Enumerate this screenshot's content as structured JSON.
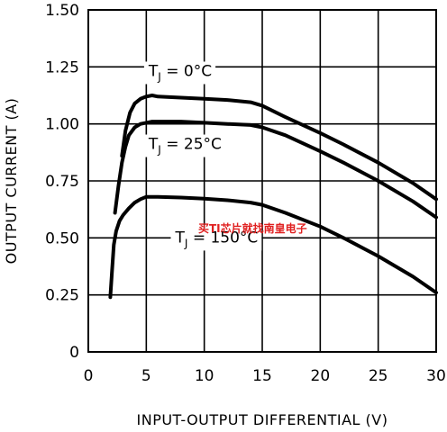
{
  "chart_data": {
    "type": "line",
    "xlabel": "INPUT-OUTPUT DIFFERENTIAL (V)",
    "ylabel": "OUTPUT CURRENT (A)",
    "xlim": [
      0,
      30
    ],
    "ylim": [
      0,
      1.5
    ],
    "x_ticks": [
      "0",
      "5",
      "10",
      "15",
      "20",
      "25",
      "30"
    ],
    "y_ticks": [
      "0",
      "0.25",
      "0.50",
      "0.75",
      "1.00",
      "1.25",
      "1.50"
    ],
    "grid": true,
    "series": [
      {
        "name": "T_J = 0°C",
        "x": [
          2.9,
          3.2,
          3.6,
          4.0,
          4.5,
          5.0,
          5.5,
          6,
          8,
          10,
          12,
          14,
          15,
          17,
          20,
          22,
          25,
          28,
          30
        ],
        "y": [
          0.86,
          0.97,
          1.05,
          1.09,
          1.11,
          1.12,
          1.125,
          1.12,
          1.115,
          1.11,
          1.105,
          1.095,
          1.08,
          1.03,
          0.96,
          0.91,
          0.83,
          0.74,
          0.67
        ]
      },
      {
        "name": "T_J = 25°C",
        "x": [
          2.3,
          2.6,
          2.9,
          3.2,
          3.5,
          4.0,
          4.5,
          5.0,
          5.5,
          6,
          8,
          10,
          12,
          14,
          15,
          17,
          20,
          22,
          25,
          28,
          30
        ],
        "y": [
          0.61,
          0.73,
          0.83,
          0.9,
          0.95,
          0.985,
          1.0,
          1.005,
          1.01,
          1.01,
          1.01,
          1.005,
          1.0,
          0.995,
          0.985,
          0.95,
          0.88,
          0.83,
          0.75,
          0.66,
          0.59
        ]
      },
      {
        "name": "T_J = 150°C",
        "x": [
          1.9,
          2.05,
          2.2,
          2.4,
          2.7,
          3.0,
          3.5,
          4.0,
          4.5,
          5.0,
          6,
          8,
          10,
          12,
          14,
          15,
          17,
          20,
          22,
          25,
          28,
          30
        ],
        "y": [
          0.24,
          0.36,
          0.47,
          0.53,
          0.575,
          0.6,
          0.63,
          0.655,
          0.67,
          0.68,
          0.68,
          0.677,
          0.672,
          0.665,
          0.655,
          0.645,
          0.61,
          0.55,
          0.5,
          0.42,
          0.33,
          0.26
        ]
      }
    ],
    "annotations": [
      {
        "text": "T",
        "sub": "J",
        "rest": " = 0°C",
        "series": 0
      },
      {
        "text": "T",
        "sub": "J",
        "rest": " = 25°C",
        "series": 1
      },
      {
        "text": "T",
        "sub": "J",
        "rest": " = 150°C",
        "series": 2
      }
    ]
  },
  "watermark": "买TI芯片就找南皇电子"
}
